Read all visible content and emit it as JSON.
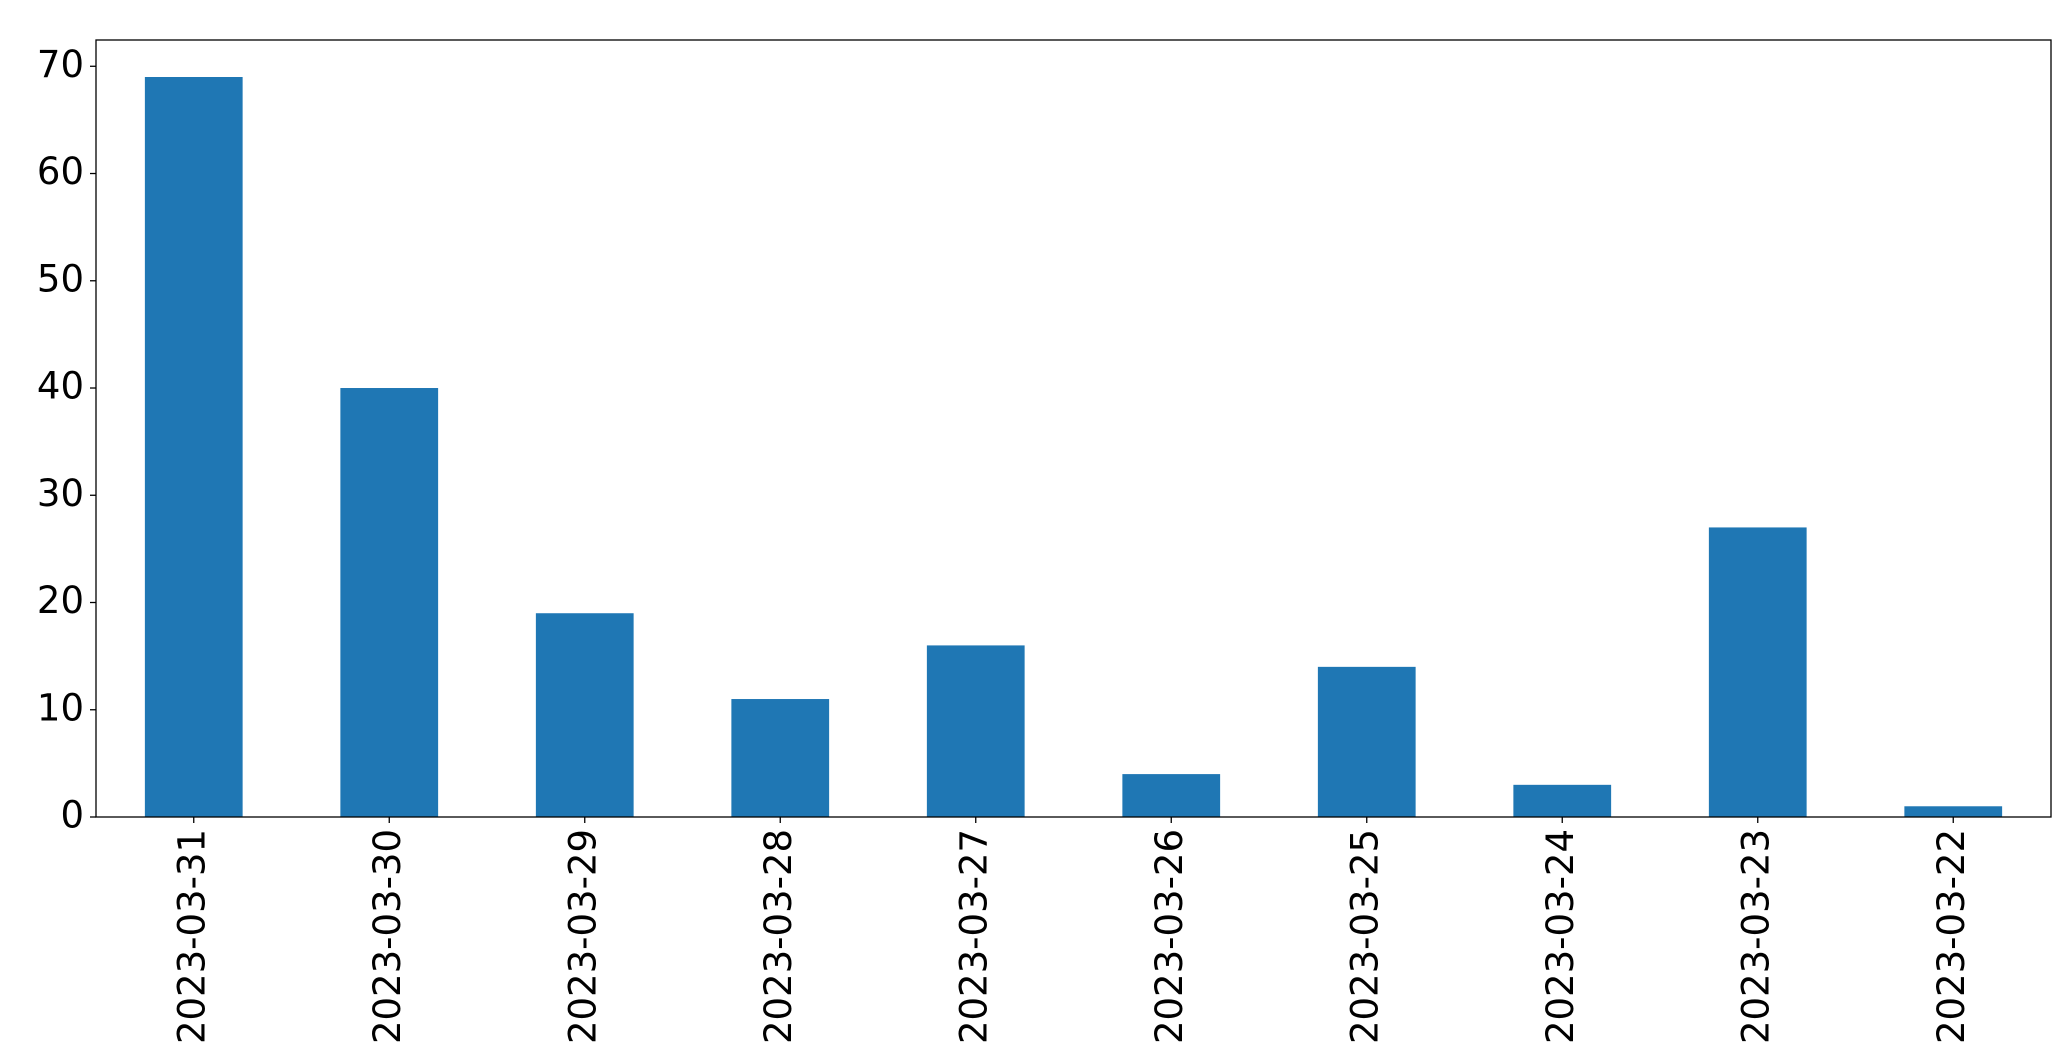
{
  "chart_data": {
    "type": "bar",
    "categories": [
      "2023-03-31",
      "2023-03-30",
      "2023-03-29",
      "2023-03-28",
      "2023-03-27",
      "2023-03-26",
      "2023-03-25",
      "2023-03-24",
      "2023-03-23",
      "2023-03-22"
    ],
    "values": [
      69,
      40,
      19,
      11,
      16,
      4,
      14,
      3,
      27,
      1
    ],
    "color": "#1f77b4",
    "ylim": [
      0,
      72.45
    ],
    "yticks": [
      0,
      10,
      20,
      30,
      40,
      50,
      60,
      70
    ],
    "grid": false
  }
}
